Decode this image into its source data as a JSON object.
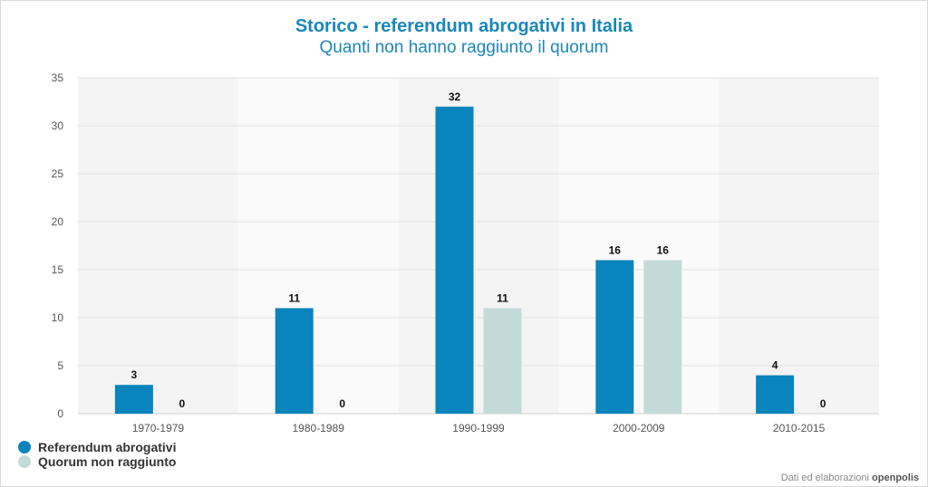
{
  "chart_data": {
    "type": "bar",
    "title": "Storico - referendum abrogativi in Italia",
    "subtitle": "Quanti non hanno raggiunto il quorum",
    "categories": [
      "1970-1979",
      "1980-1989",
      "1990-1999",
      "2000-2009",
      "2010-2015"
    ],
    "series": [
      {
        "name": "Referendum abrogativi",
        "color": "#0a84bd",
        "values": [
          3,
          11,
          32,
          16,
          4
        ]
      },
      {
        "name": "Quorum non raggiunto",
        "color": "#c3dbd8",
        "values": [
          0,
          0,
          11,
          16,
          0
        ]
      }
    ],
    "ylim": [
      0,
      35
    ],
    "yticks": [
      0,
      5,
      10,
      15,
      20,
      25,
      30,
      35
    ],
    "xlabel": "",
    "ylabel": "",
    "legend_position": "bottom-left",
    "grid": true
  },
  "credit": {
    "text": "Dati ed elaborazioni",
    "brand": "openpolis"
  }
}
